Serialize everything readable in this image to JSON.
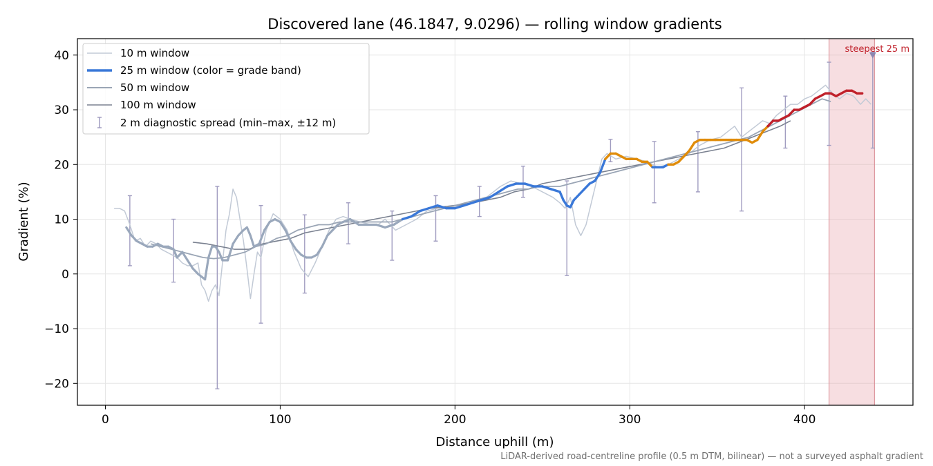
{
  "chart_data": {
    "type": "line",
    "title": "Discovered lane (46.1847, 9.0296) — rolling window gradients",
    "xlabel": "Distance uphill (m)",
    "ylabel": "Gradient (%)",
    "xlim": [
      -16,
      462
    ],
    "ylim": [
      -24,
      43
    ],
    "xticks": [
      0,
      100,
      200,
      300,
      400
    ],
    "yticks": [
      -20,
      -10,
      0,
      10,
      20,
      30,
      40
    ],
    "xtick_labels": [
      "0",
      "100",
      "200",
      "300",
      "400"
    ],
    "ytick_labels": [
      "−20",
      "−10",
      "0",
      "10",
      "20",
      "30",
      "40"
    ],
    "grid": true,
    "legend_position": "top-left",
    "footnote": "LiDAR-derived road-centreline profile (0.5 m DTM, bilinear) — not a surveyed asphalt gradient",
    "annotation": {
      "text": "steepest 25 m",
      "x_range": [
        414,
        440
      ],
      "marker_x": 439,
      "marker_y": 40,
      "color": "#c0202a"
    },
    "legend": [
      {
        "label": "10 m window",
        "style": "thin-line",
        "color": "#c2cad6"
      },
      {
        "label": "25 m window (color = grade band)",
        "style": "thick-line",
        "color": "#3a78d8"
      },
      {
        "label": "50 m window",
        "style": "line",
        "color": "#9aa5b5"
      },
      {
        "label": "100 m window",
        "style": "line",
        "color": "#7a8190"
      },
      {
        "label": "2 m diagnostic spread (min–max, ±12 m)",
        "style": "errorbar",
        "color": "#a09cc0"
      }
    ],
    "grade_band_colors": {
      "below_10": "#9aa8bc",
      "10_to_20": "#3a78d8",
      "20_to_27": "#e08c0a",
      "above_27": "#c0202a"
    },
    "series": [
      {
        "name": "10 m window",
        "color": "#c2cad6",
        "x": [
          5,
          8,
          11,
          14,
          17,
          20,
          23,
          26,
          29,
          32,
          35,
          38,
          41,
          44,
          47,
          50,
          53,
          55,
          57,
          59,
          61,
          63,
          65,
          67,
          69,
          71,
          73,
          75,
          77,
          79,
          81,
          83,
          85,
          87,
          89,
          92,
          96,
          100,
          104,
          108,
          112,
          116,
          120,
          124,
          128,
          132,
          136,
          140,
          146,
          152,
          156,
          160,
          166,
          172,
          178,
          184,
          190,
          196,
          202,
          210,
          218,
          226,
          232,
          238,
          244,
          250,
          256,
          260,
          263,
          266,
          269,
          272,
          275,
          278,
          281,
          284,
          287,
          292,
          298,
          304,
          310,
          316,
          322,
          328,
          334,
          340,
          346,
          352,
          356,
          360,
          364,
          368,
          372,
          376,
          380,
          384,
          388,
          392,
          396,
          400,
          404,
          408,
          412,
          416,
          420,
          424,
          428,
          432,
          435,
          438
        ],
        "y": [
          12,
          12,
          11.5,
          9,
          6,
          6.5,
          5,
          6,
          5.5,
          4.5,
          4,
          3.5,
          3,
          2,
          1.5,
          1.5,
          2,
          -2,
          -3,
          -5,
          -3,
          -2,
          -4,
          2,
          8,
          11,
          15.5,
          14,
          10,
          6,
          1,
          -4.5,
          0,
          4,
          3,
          8,
          11,
          10,
          8,
          4,
          1,
          -0.5,
          2,
          5,
          8,
          10,
          10.5,
          10,
          9.5,
          9,
          9,
          10,
          8,
          9,
          10,
          11.5,
          12,
          12,
          12.5,
          13,
          14,
          16,
          17,
          16.5,
          16,
          15,
          14,
          13,
          12,
          14,
          9,
          7,
          9,
          13,
          17,
          21,
          22,
          21,
          21.5,
          21,
          20.5,
          19.5,
          20,
          21,
          22,
          23.5,
          24.5,
          25,
          26,
          27,
          25,
          26,
          27,
          28,
          27.5,
          29,
          30,
          31,
          31,
          32,
          32.5,
          33.5,
          34.5,
          33,
          32,
          33,
          32.5,
          31,
          32,
          31
        ]
      },
      {
        "name": "25 m window",
        "color": "#3a78d8",
        "x": [
          12,
          15,
          18,
          21,
          24,
          27,
          30,
          33,
          36,
          39,
          41,
          44,
          47,
          50,
          53,
          55,
          57,
          59,
          61,
          63,
          65,
          67,
          70,
          73,
          76,
          79,
          81,
          83,
          85,
          88,
          91,
          94,
          97,
          100,
          103,
          106,
          109,
          112,
          115,
          118,
          121,
          124,
          127,
          130,
          133,
          136,
          140,
          145,
          150,
          155,
          160,
          165,
          170,
          175,
          180,
          185,
          190,
          195,
          200,
          205,
          210,
          215,
          220,
          225,
          230,
          235,
          240,
          245,
          250,
          255,
          260,
          262,
          264,
          266,
          268,
          271,
          274,
          277,
          280,
          283,
          286,
          289,
          292,
          295,
          298,
          301,
          304,
          307,
          310,
          313,
          316,
          319,
          322,
          325,
          328,
          331,
          334,
          337,
          340,
          343,
          346,
          349,
          352,
          355,
          358,
          361,
          364,
          367,
          370,
          373,
          376,
          379,
          382,
          385,
          388,
          391,
          394,
          397,
          400,
          403,
          406,
          409,
          412,
          415,
          418,
          421,
          424,
          427,
          430,
          433
        ],
        "y": [
          8.5,
          7,
          6,
          5.5,
          5,
          5,
          5.5,
          5,
          5,
          4.5,
          3,
          4,
          2.5,
          1,
          0,
          -0.5,
          -1,
          3,
          5,
          5,
          4,
          2.5,
          2.5,
          5.5,
          7,
          8,
          8.5,
          7,
          5,
          5.5,
          8,
          9.5,
          10,
          9.5,
          8,
          6,
          4.5,
          3.5,
          3,
          3,
          3.5,
          5,
          7,
          8,
          9,
          9.5,
          10,
          9,
          9,
          9,
          8.5,
          9,
          10,
          10.5,
          11.5,
          12,
          12.5,
          12,
          12,
          12.5,
          13,
          13.5,
          14,
          15,
          16,
          16.5,
          16.5,
          16,
          16,
          15.5,
          15,
          13.5,
          12.5,
          12.2,
          13.5,
          14.5,
          15.5,
          16.5,
          17,
          18.5,
          21,
          22,
          22,
          21.5,
          21,
          21,
          21,
          20.5,
          20.5,
          19.5,
          19.5,
          19.5,
          20,
          20,
          20.5,
          21.5,
          22.5,
          24,
          24.5,
          24.5,
          24.5,
          24.5,
          24.5,
          24.5,
          24.5,
          24.5,
          24.5,
          24.5,
          24,
          24.5,
          26,
          27,
          28,
          28,
          28.5,
          29,
          30,
          30,
          30.5,
          31,
          32,
          32.5,
          33,
          33,
          32.5,
          33,
          33.5,
          33.5,
          33,
          33
        ]
      },
      {
        "name": "50 m window",
        "color": "#9aa5b5",
        "x": [
          26,
          32,
          38,
          44,
          50,
          56,
          62,
          68,
          74,
          80,
          86,
          92,
          98,
          104,
          110,
          116,
          122,
          128,
          134,
          140,
          146,
          152,
          158,
          164,
          170,
          176,
          182,
          188,
          194,
          200,
          206,
          212,
          218,
          224,
          230,
          236,
          242,
          248,
          254,
          260,
          266,
          272,
          278,
          284,
          290,
          296,
          302,
          308,
          314,
          320,
          326,
          332,
          338,
          344,
          350,
          356,
          362,
          368,
          374,
          380,
          386,
          392,
          398,
          404,
          410,
          415
        ],
        "y": [
          5.5,
          5,
          4.5,
          4,
          3.5,
          3,
          2.8,
          3,
          3.5,
          4,
          5,
          5.5,
          6.5,
          7,
          8,
          8.5,
          9,
          9,
          9.5,
          9.5,
          9.5,
          9.5,
          9.5,
          9.5,
          10,
          10.5,
          11,
          11.5,
          12,
          12.5,
          13,
          13.5,
          14,
          14.5,
          15,
          15.5,
          15.5,
          16,
          16,
          16,
          16.5,
          17,
          17.5,
          18,
          18.5,
          19,
          19.5,
          20,
          20.5,
          21,
          21.5,
          22,
          22.5,
          23,
          23.5,
          24,
          24.5,
          25,
          26,
          27,
          28,
          29,
          30,
          31,
          32,
          31.5
        ]
      },
      {
        "name": "100 m window",
        "color": "#7a8190",
        "x": [
          50,
          58,
          66,
          74,
          82,
          90,
          98,
          106,
          114,
          122,
          130,
          138,
          146,
          154,
          162,
          170,
          178,
          186,
          194,
          202,
          210,
          218,
          226,
          234,
          242,
          250,
          258,
          266,
          274,
          282,
          290,
          298,
          306,
          314,
          322,
          330,
          338,
          346,
          354,
          362,
          370,
          378,
          386,
          392
        ],
        "y": [
          5.8,
          5.5,
          5,
          4.5,
          4.5,
          5.5,
          6,
          6.5,
          7.5,
          8,
          8.5,
          9,
          9.5,
          10,
          10.5,
          11,
          11.5,
          12,
          12.3,
          12.6,
          13,
          13.5,
          14,
          15,
          15.5,
          16.5,
          17,
          17.5,
          18,
          18.5,
          19,
          19.5,
          20,
          20.5,
          21,
          21.5,
          22,
          22.5,
          23,
          24,
          25,
          26,
          27,
          28
        ]
      }
    ],
    "error_bars": {
      "name": "2 m diagnostic spread (min–max, ±12 m)",
      "x": [
        14,
        39,
        64,
        89,
        114,
        139,
        164,
        189,
        214,
        239,
        264,
        289,
        314,
        339,
        364,
        389,
        414,
        439
      ],
      "min": [
        1.5,
        -1.5,
        -21,
        -9,
        -3.5,
        5.5,
        2.5,
        6,
        10.5,
        14,
        -0.3,
        20.5,
        13,
        15,
        11.5,
        23,
        23.5,
        23
      ],
      "max": [
        14.3,
        10,
        16,
        12.5,
        10.8,
        13,
        11.5,
        14.3,
        16,
        19.7,
        17,
        24.6,
        24.2,
        26,
        34,
        32.5,
        38.7,
        40.5
      ]
    }
  }
}
